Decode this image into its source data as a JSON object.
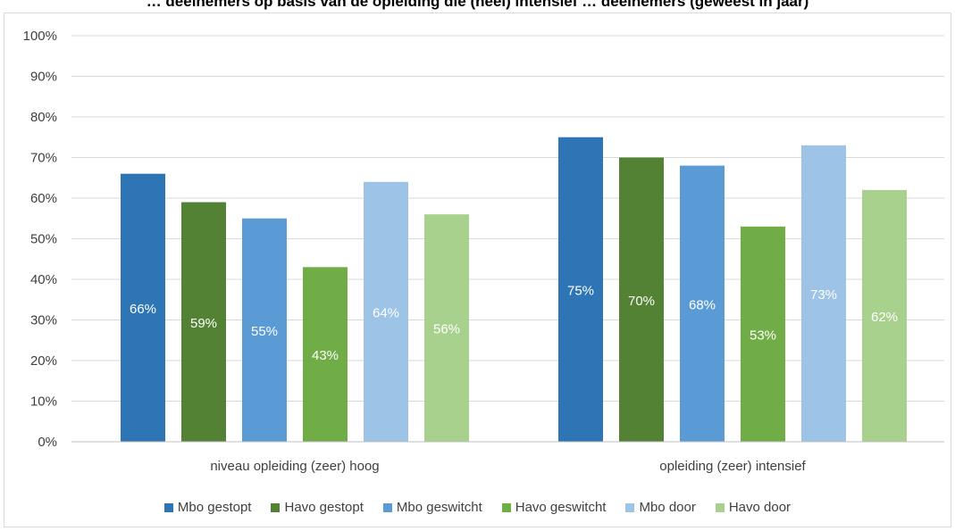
{
  "chart_data": {
    "type": "bar",
    "title": "… deelnemers op basis van de opleiding die (heel) intensief … deelnemers (geweest in jaar)",
    "categories": [
      "niveau opleiding (zeer) hoog",
      "opleiding (zeer) intensief"
    ],
    "ylim": [
      0,
      100
    ],
    "yticks": [
      "0%",
      "10%",
      "20%",
      "30%",
      "40%",
      "50%",
      "60%",
      "70%",
      "80%",
      "90%",
      "100%"
    ],
    "grid": true,
    "legend_position": "bottom",
    "series": [
      {
        "name": "Mbo gestopt",
        "color": "#2e75b6",
        "values": [
          66,
          75
        ],
        "labels": [
          "66%",
          "75%"
        ]
      },
      {
        "name": "Havo gestopt",
        "color": "#548235",
        "values": [
          59,
          70
        ],
        "labels": [
          "59%",
          "70%"
        ]
      },
      {
        "name": "Mbo geswitcht",
        "color": "#5b9bd5",
        "values": [
          55,
          68
        ],
        "labels": [
          "55%",
          "68%"
        ]
      },
      {
        "name": "Havo geswitcht",
        "color": "#70ad47",
        "values": [
          43,
          53
        ],
        "labels": [
          "43%",
          "53%"
        ]
      },
      {
        "name": "Mbo door",
        "color": "#9dc3e6",
        "values": [
          64,
          73
        ],
        "labels": [
          "64%",
          "73%"
        ]
      },
      {
        "name": "Havo door",
        "color": "#a9d18e",
        "values": [
          56,
          62
        ],
        "labels": [
          "56%",
          "62%"
        ]
      }
    ]
  }
}
